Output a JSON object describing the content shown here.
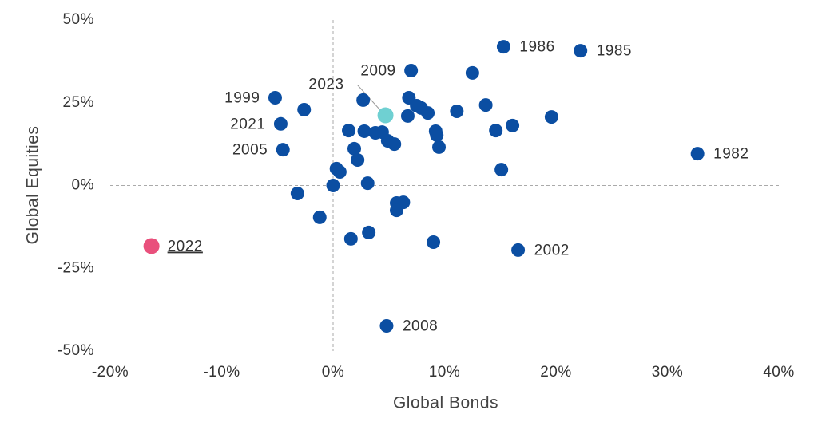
{
  "chart_data": {
    "type": "scatter",
    "x_label": "Global Bonds",
    "y_label": "Global Equities",
    "xlim": [
      -20,
      40
    ],
    "xticks": [
      {
        "value": -20,
        "label": "-20%"
      },
      {
        "value": -10,
        "label": "-10%"
      },
      {
        "value": 0,
        "label": "0%"
      },
      {
        "value": 10,
        "label": "10%"
      },
      {
        "value": 20,
        "label": "20%"
      },
      {
        "value": 30,
        "label": "30%"
      },
      {
        "value": 40,
        "label": "40%"
      }
    ],
    "ylim": [
      -50,
      50
    ],
    "yticks": [
      {
        "value": -50,
        "label": "-50%"
      },
      {
        "value": -25,
        "label": "-25%"
      },
      {
        "value": 0,
        "label": "0%"
      },
      {
        "value": 25,
        "label": "25%"
      },
      {
        "value": 50,
        "label": "50%"
      }
    ],
    "x": [
      15.3,
      22.2,
      7.0,
      -5.2,
      4.7,
      -4.7,
      -4.5,
      32.7,
      -16.3,
      16.6,
      4.8,
      12.5,
      -2.6,
      2.7,
      6.8,
      7.5,
      7.9,
      6.7,
      8.5,
      11.1,
      13.7,
      19.6,
      16.1,
      14.6,
      1.4,
      2.8,
      3.8,
      4.4,
      9.2,
      9.3,
      4.9,
      5.5,
      9.5,
      1.9,
      2.2,
      0.3,
      0.6,
      15.1,
      3.1,
      0.0,
      -3.2,
      6.3,
      5.7,
      5.7,
      -1.2,
      3.2,
      1.6,
      9.0
    ],
    "y": [
      41.9,
      40.7,
      34.7,
      26.5,
      21.2,
      18.6,
      10.8,
      9.6,
      -18.3,
      -19.5,
      -42.4,
      34.0,
      22.9,
      25.8,
      26.5,
      24.1,
      23.4,
      21.0,
      21.9,
      22.4,
      24.3,
      20.7,
      18.1,
      16.6,
      16.6,
      16.4,
      15.9,
      16.1,
      16.4,
      15.2,
      13.5,
      12.5,
      11.6,
      11.1,
      7.7,
      5.1,
      4.1,
      4.8,
      0.7,
      0.0,
      -2.4,
      -5.1,
      -5.3,
      -7.5,
      -9.6,
      -14.2,
      -16.1,
      -17.1
    ],
    "labels": [
      "1986",
      "1985",
      "2009",
      "1999",
      "2023",
      "2021",
      "2005",
      "1982",
      "2022",
      "2002",
      "2008",
      null,
      null,
      null,
      null,
      null,
      null,
      null,
      null,
      null,
      null,
      null,
      null,
      null,
      null,
      null,
      null,
      null,
      null,
      null,
      null,
      null,
      null,
      null,
      null,
      null,
      null,
      null,
      null,
      null,
      null,
      null,
      null,
      null,
      null,
      null,
      null,
      null
    ],
    "colors": [
      "#0b4ea2",
      "#0b4ea2",
      "#0b4ea2",
      "#0b4ea2",
      "#6fd0d2",
      "#0b4ea2",
      "#0b4ea2",
      "#0b4ea2",
      "#e9507c",
      "#0b4ea2",
      "#0b4ea2",
      "#0b4ea2",
      "#0b4ea2",
      "#0b4ea2",
      "#0b4ea2",
      "#0b4ea2",
      "#0b4ea2",
      "#0b4ea2",
      "#0b4ea2",
      "#0b4ea2",
      "#0b4ea2",
      "#0b4ea2",
      "#0b4ea2",
      "#0b4ea2",
      "#0b4ea2",
      "#0b4ea2",
      "#0b4ea2",
      "#0b4ea2",
      "#0b4ea2",
      "#0b4ea2",
      "#0b4ea2",
      "#0b4ea2",
      "#0b4ea2",
      "#0b4ea2",
      "#0b4ea2",
      "#0b4ea2",
      "#0b4ea2",
      "#0b4ea2",
      "#0b4ea2",
      "#0b4ea2",
      "#0b4ea2",
      "#0b4ea2",
      "#0b4ea2",
      "#0b4ea2",
      "#0b4ea2",
      "#0b4ea2",
      "#0b4ea2",
      "#0b4ea2"
    ]
  }
}
